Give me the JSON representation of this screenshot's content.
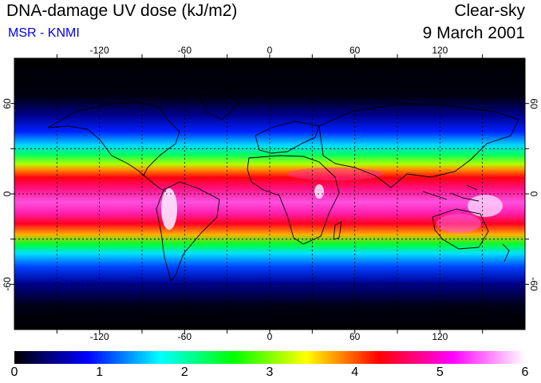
{
  "title": "DNA-damage UV dose (kJ/m2)",
  "source": "MSR - KNMI",
  "condition": "Clear-sky",
  "date": "9 March 2001",
  "map": {
    "projection": "equirectangular",
    "lon_ticks": [
      {
        "value": -120,
        "label": "-120"
      },
      {
        "value": -60,
        "label": "-60"
      },
      {
        "value": 0,
        "label": "0"
      },
      {
        "value": 60,
        "label": "60"
      },
      {
        "value": 120,
        "label": "120"
      }
    ],
    "lat_ticks": [
      {
        "value": 60,
        "label": "60"
      },
      {
        "value": 0,
        "label": "0"
      },
      {
        "value": -60,
        "label": "-60"
      }
    ],
    "gridlines": "dashed"
  },
  "colorbar": {
    "min": 0,
    "max": 6,
    "labels": [
      "0",
      "1",
      "2",
      "3",
      "4",
      "5",
      "6"
    ],
    "colors": [
      "#000000",
      "#000080",
      "#0000ff",
      "#0080ff",
      "#00ffff",
      "#00ff80",
      "#00ff00",
      "#80ff00",
      "#ffff00",
      "#ff8000",
      "#ff0000",
      "#ff0080",
      "#ff00ff",
      "#ff80ff",
      "#ffffff"
    ]
  }
}
